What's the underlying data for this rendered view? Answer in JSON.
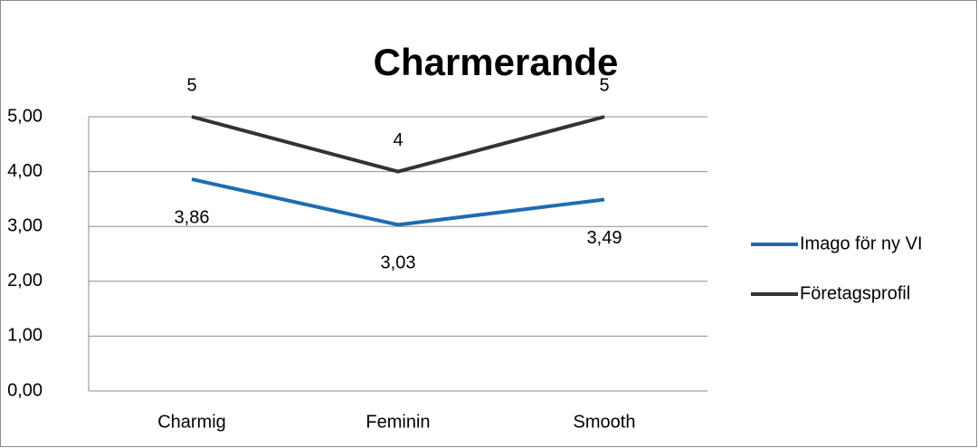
{
  "chart_data": {
    "type": "line",
    "title": "Charmerande",
    "categories": [
      "Charmig",
      "Feminin",
      "Smooth"
    ],
    "series": [
      {
        "name": "Imago för ny VI",
        "color": "#1f6cb0",
        "values": [
          3.86,
          3.03,
          3.49
        ],
        "value_labels": [
          "3,86",
          "3,03",
          "3,49"
        ]
      },
      {
        "name": "Företagsprofil",
        "color": "#333333",
        "values": [
          5,
          4,
          5
        ]
      }
    ],
    "ylim": [
      0,
      5
    ],
    "yticks": [
      {
        "value": 0,
        "label": "0,00"
      },
      {
        "value": 1,
        "label": "1,00"
      },
      {
        "value": 2,
        "label": "2,00"
      },
      {
        "value": 3,
        "label": "3,00"
      },
      {
        "value": 4,
        "label": "4,00"
      },
      {
        "value": 5,
        "label": "5,00"
      }
    ],
    "grid": true,
    "legend": "right"
  }
}
